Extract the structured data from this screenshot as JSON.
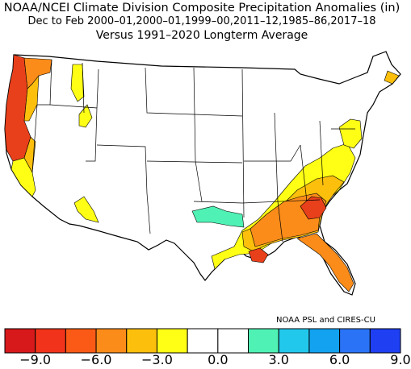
{
  "title": "NOAA/NCEI Climate Division Composite Precipitation Anomalies (in)",
  "subtitle": "Dec to Feb  2000–01,2000–01,1999–00,2011–12,1985–86,2017–18",
  "baseline": "Versus 1991–2020 Longterm Average",
  "credit": "NOAA PSL and CIRES-CU",
  "colorbar": {
    "colors": [
      "#d7191c",
      "#f0331a",
      "#fa5a15",
      "#fb8c19",
      "#fcbf0c",
      "#ffff16",
      "#ffffff",
      "#ffffff",
      "#4ff2b4",
      "#22c8ec",
      "#12a2f0",
      "#2a73f6",
      "#1f3ff2"
    ],
    "ticks": [
      "−9.0",
      "−6.0",
      "−3.0",
      "0.0",
      "3.0",
      "6.0",
      "9.0"
    ]
  },
  "map_colors": {
    "dry_strong": "#e8401b",
    "dry_moderate": "#fb8c19",
    "dry_light": "#fcbf0c",
    "dry_slight": "#ffff16",
    "wet_slight": "#4ff2b4",
    "neutral": "#ffffff"
  }
}
